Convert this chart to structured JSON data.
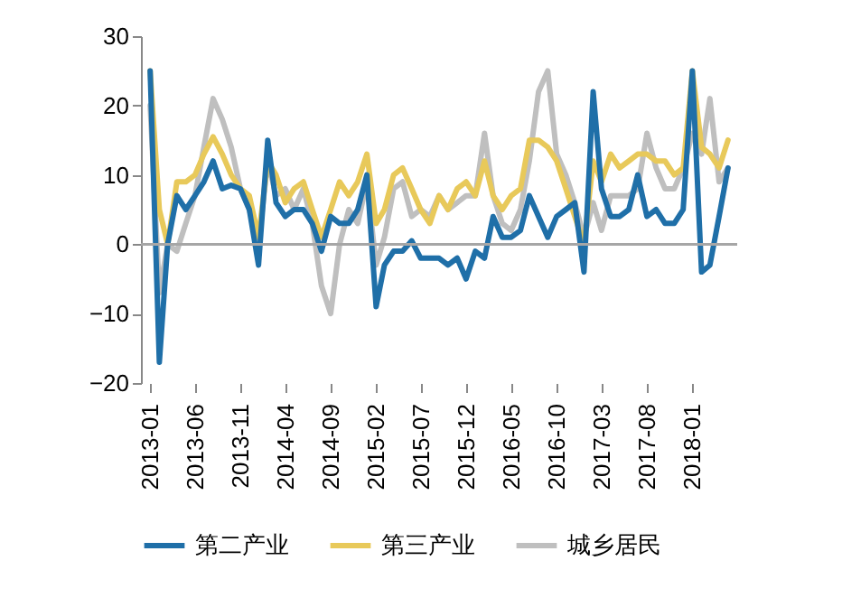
{
  "chart_data": {
    "type": "line",
    "x": [
      "2013-01",
      "2013-02",
      "2013-03",
      "2013-04",
      "2013-05",
      "2013-06",
      "2013-07",
      "2013-08",
      "2013-09",
      "2013-10",
      "2013-11",
      "2013-12",
      "2014-01",
      "2014-02",
      "2014-03",
      "2014-04",
      "2014-05",
      "2014-06",
      "2014-07",
      "2014-08",
      "2014-09",
      "2014-10",
      "2014-11",
      "2014-12",
      "2015-01",
      "2015-02",
      "2015-03",
      "2015-04",
      "2015-05",
      "2015-06",
      "2015-07",
      "2015-08",
      "2015-09",
      "2015-10",
      "2015-11",
      "2015-12",
      "2016-01",
      "2016-02",
      "2016-03",
      "2016-04",
      "2016-05",
      "2016-06",
      "2016-07",
      "2016-08",
      "2016-09",
      "2016-10",
      "2016-11",
      "2016-12",
      "2017-01",
      "2017-02",
      "2017-03",
      "2017-04",
      "2017-05",
      "2017-06",
      "2017-07",
      "2017-08",
      "2017-09",
      "2017-10",
      "2017-11",
      "2017-12",
      "2018-01",
      "2018-02",
      "2018-03",
      "2018-04",
      "2018-05"
    ],
    "series": [
      {
        "name": "第二产业",
        "color": "#1f6fa8",
        "values": [
          25,
          -17,
          0,
          7,
          5,
          7,
          9,
          12,
          8,
          8.5,
          8,
          5,
          -3,
          15,
          6,
          4,
          5,
          5,
          3,
          -1,
          4,
          3,
          3,
          5,
          10,
          -9,
          -3,
          -1,
          -1,
          0.5,
          -2,
          -2,
          -2,
          -3,
          -2,
          -5,
          -1,
          -2,
          4,
          1,
          1,
          2,
          7,
          4,
          1,
          4,
          5,
          6,
          -4,
          22,
          8,
          4,
          4,
          5,
          10,
          4,
          5,
          3,
          3,
          5,
          25,
          -4,
          -3,
          4,
          11
        ]
      },
      {
        "name": "第三产业",
        "color": "#e8c95a",
        "values": [
          25,
          5,
          0,
          9,
          9,
          10,
          13,
          15.5,
          13,
          10,
          8,
          7,
          1,
          12,
          10,
          6,
          8,
          9,
          5,
          1,
          5,
          9,
          7,
          9,
          13,
          3,
          5,
          10,
          11,
          8,
          5,
          3,
          7,
          5,
          8,
          9,
          7,
          12,
          7,
          5,
          7,
          8,
          15,
          15,
          14,
          12,
          8,
          4,
          0,
          12,
          9,
          13,
          11,
          12,
          13,
          13,
          12,
          12,
          10,
          11,
          25,
          14,
          13,
          11,
          15
        ]
      },
      {
        "name": "城乡居民",
        "color": "#bfbfbf",
        "values": [
          20,
          -7,
          0,
          -1,
          3,
          7,
          14,
          21,
          18,
          14,
          8,
          5,
          0,
          12,
          7,
          8,
          5,
          8,
          3,
          -6,
          -10,
          0,
          5,
          3,
          9,
          -3,
          1,
          8,
          9,
          4,
          5,
          4,
          7,
          5,
          6,
          7,
          7,
          16,
          7,
          3,
          2,
          5,
          12,
          22,
          25,
          13,
          10,
          6,
          1,
          6,
          2,
          7,
          7,
          7,
          8,
          16,
          11,
          8,
          8,
          11,
          16,
          13,
          21,
          9,
          11
        ]
      }
    ],
    "xlim": [
      "2012-12",
      "2018-06"
    ],
    "xticks": [
      "2013-01",
      "2013-06",
      "2013-11",
      "2014-04",
      "2014-09",
      "2015-02",
      "2015-07",
      "2015-12",
      "2016-05",
      "2016-10",
      "2017-03",
      "2017-08",
      "2018-01"
    ],
    "ylim": [
      -20,
      30
    ],
    "yticks": [
      -20,
      -10,
      0,
      10,
      20,
      30
    ],
    "ref_lines": [
      {
        "axis": "y",
        "value": 0,
        "color": "#a6a6a6"
      }
    ],
    "grid": false,
    "legend": "bottom",
    "line_style": "solid"
  }
}
